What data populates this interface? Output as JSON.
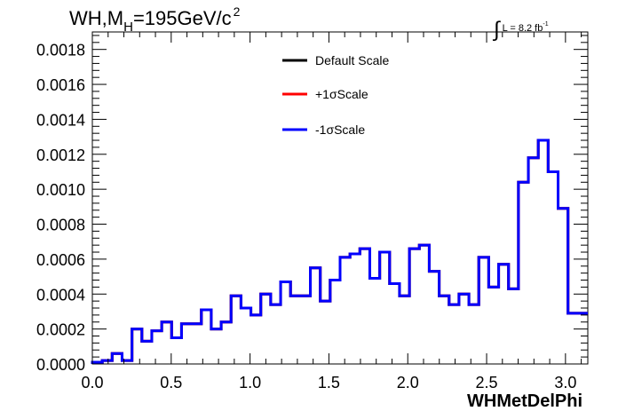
{
  "title": {
    "main": "WH,M",
    "sub": "H",
    "value": "=195GeV/c",
    "sup": "2"
  },
  "luminosity": {
    "integral": "∫",
    "text": "L = 8.2 fb",
    "sup": "-1"
  },
  "chart_data": {
    "type": "line",
    "drawstyle": "steps",
    "xlabel": "WHMetDelPhi",
    "ylabel": "",
    "xlim": [
      0.0,
      3.1416
    ],
    "ylim": [
      0.0,
      0.0019
    ],
    "xticks": [
      "0.0",
      "0.5",
      "1.0",
      "1.5",
      "2.0",
      "2.5",
      "3.0"
    ],
    "xtick_values": [
      0.0,
      0.5,
      1.0,
      1.5,
      2.0,
      2.5,
      3.0
    ],
    "yticks": [
      "0.0000",
      "0.0002",
      "0.0004",
      "0.0006",
      "0.0008",
      "0.0010",
      "0.0012",
      "0.0014",
      "0.0016",
      "0.0018"
    ],
    "ytick_values": [
      0.0,
      0.0002,
      0.0004,
      0.0006,
      0.0008,
      0.001,
      0.0012,
      0.0014,
      0.0016,
      0.0018
    ],
    "bin_edges": [
      0.0,
      0.0628,
      0.1257,
      0.1885,
      0.2513,
      0.3142,
      0.377,
      0.4398,
      0.5027,
      0.5655,
      0.6283,
      0.6912,
      0.754,
      0.8168,
      0.8796,
      0.9425,
      1.0053,
      1.0681,
      1.131,
      1.1938,
      1.2566,
      1.3195,
      1.3823,
      1.4451,
      1.508,
      1.5708,
      1.6336,
      1.6965,
      1.7593,
      1.8221,
      1.885,
      1.9478,
      2.0106,
      2.0735,
      2.1363,
      2.1991,
      2.2619,
      2.3248,
      2.3876,
      2.4504,
      2.5133,
      2.5761,
      2.6389,
      2.7018,
      2.7646,
      2.8274,
      2.8903,
      2.9531,
      3.0159,
      3.0788,
      3.1416
    ],
    "series": [
      {
        "name": "Default Scale",
        "color": "#000000",
        "values": [
          1e-05,
          2e-05,
          6e-05,
          2e-05,
          0.0002,
          0.00013,
          0.00019,
          0.00024,
          0.00015,
          0.00023,
          0.00023,
          0.00031,
          0.0002,
          0.00024,
          0.00039,
          0.00032,
          0.00028,
          0.0004,
          0.00034,
          0.00047,
          0.00039,
          0.00039,
          0.00055,
          0.00036,
          0.00048,
          0.00061,
          0.00063,
          0.00066,
          0.00049,
          0.00064,
          0.00046,
          0.00039,
          0.00066,
          0.00068,
          0.00053,
          0.00039,
          0.00034,
          0.0004,
          0.00034,
          0.00061,
          0.00044,
          0.00057,
          0.00043,
          0.00104,
          0.00118,
          0.00128,
          0.0011,
          0.00089,
          0.00029,
          0.00029
        ]
      },
      {
        "name": "+1σScale",
        "color": "#ff0000",
        "values": [
          1e-05,
          2e-05,
          6e-05,
          2e-05,
          0.0002,
          0.00013,
          0.00019,
          0.00024,
          0.00015,
          0.00023,
          0.00023,
          0.00031,
          0.0002,
          0.00024,
          0.00039,
          0.00032,
          0.00028,
          0.0004,
          0.00034,
          0.00047,
          0.00039,
          0.00039,
          0.00055,
          0.00036,
          0.00048,
          0.00061,
          0.00063,
          0.00066,
          0.00049,
          0.00064,
          0.00046,
          0.00039,
          0.00066,
          0.00068,
          0.00053,
          0.00039,
          0.00034,
          0.0004,
          0.00034,
          0.00061,
          0.00044,
          0.00057,
          0.00043,
          0.00104,
          0.00118,
          0.00128,
          0.0011,
          0.00089,
          0.00029,
          0.00029
        ]
      },
      {
        "name": "-1σScale",
        "color": "#0000ff",
        "values": [
          1e-05,
          2e-05,
          6e-05,
          2e-05,
          0.0002,
          0.00013,
          0.00019,
          0.00024,
          0.00015,
          0.00023,
          0.00023,
          0.00031,
          0.0002,
          0.00024,
          0.00039,
          0.00032,
          0.00028,
          0.0004,
          0.00034,
          0.00047,
          0.00039,
          0.00039,
          0.00055,
          0.00036,
          0.00048,
          0.00061,
          0.00063,
          0.00066,
          0.00049,
          0.00064,
          0.00046,
          0.00039,
          0.00066,
          0.00068,
          0.00053,
          0.00039,
          0.00034,
          0.0004,
          0.00034,
          0.00061,
          0.00044,
          0.00057,
          0.00043,
          0.00104,
          0.00118,
          0.00128,
          0.0011,
          0.00089,
          0.00029,
          0.00029
        ]
      }
    ],
    "legend": "top-center",
    "grid": false
  }
}
